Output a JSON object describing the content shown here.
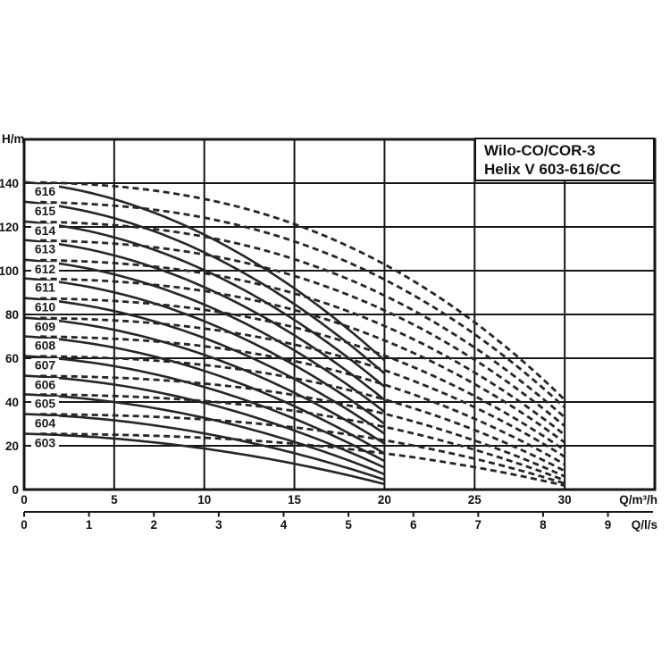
{
  "title_box": {
    "line1": "Wilo-CO/COR-3",
    "line2": "Helix V 603-616/CC"
  },
  "colors": {
    "background": "#ffffff",
    "curve": "#262626",
    "grid": "#161616",
    "text": "#111111",
    "label_bg": "#ffffff"
  },
  "chart_data": {
    "type": "line",
    "title": "Wilo-CO/COR-3 Helix V 603-616/CC",
    "grid": true,
    "y_axis": {
      "label": "H/m",
      "ticks": [
        0,
        20,
        40,
        60,
        80,
        100,
        120,
        140
      ],
      "range": [
        0,
        160
      ]
    },
    "x_axis_primary": {
      "label": "Q/m³/h",
      "ticks": [
        0,
        5,
        10,
        15,
        20,
        25,
        30
      ],
      "range": [
        0,
        35
      ]
    },
    "x_axis_secondary": {
      "label": "Q/l/s",
      "ticks": [
        0,
        1,
        2,
        3,
        4,
        5,
        6,
        7,
        8,
        9
      ],
      "m3h_per_unit": 3.6
    },
    "series_notes": "Each pump model has a solid curve (shutoff head h0 at Q=0 down to h_q20 at Q=20 m³/h) and a dashed curve (h0 at Q=0 down to h_q30 at Q=30 m³/h).",
    "solid_q_end": 20,
    "dashed_q_end": 30,
    "series": [
      {
        "model": "616",
        "h0": 140.5,
        "h_q20": 59,
        "h_q30": 41
      },
      {
        "model": "615",
        "h0": 131.5,
        "h_q20": 53,
        "h_q30": 37.5
      },
      {
        "model": "614",
        "h0": 122.5,
        "h_q20": 47,
        "h_q30": 33
      },
      {
        "model": "613",
        "h0": 114,
        "h_q20": 41,
        "h_q30": 29
      },
      {
        "model": "612",
        "h0": 105,
        "h_q20": 35.5,
        "h_q30": 25
      },
      {
        "model": "611",
        "h0": 96.5,
        "h_q20": 30,
        "h_q30": 21.5
      },
      {
        "model": "610",
        "h0": 87.5,
        "h_q20": 25.5,
        "h_q30": 18
      },
      {
        "model": "609",
        "h0": 78.5,
        "h_q20": 21,
        "h_q30": 15
      },
      {
        "model": "608",
        "h0": 70,
        "h_q20": 16.5,
        "h_q30": 11.5
      },
      {
        "model": "607",
        "h0": 61,
        "h_q20": 13,
        "h_q30": 8.5
      },
      {
        "model": "606",
        "h0": 52,
        "h_q20": 10,
        "h_q30": 6
      },
      {
        "model": "605",
        "h0": 43.5,
        "h_q20": 7,
        "h_q30": 4.2
      },
      {
        "model": "604",
        "h0": 34.5,
        "h_q20": 4.5,
        "h_q30": 2.8
      },
      {
        "model": "603",
        "h0": 25.5,
        "h_q20": 2.5,
        "h_q30": 1.8
      }
    ]
  }
}
